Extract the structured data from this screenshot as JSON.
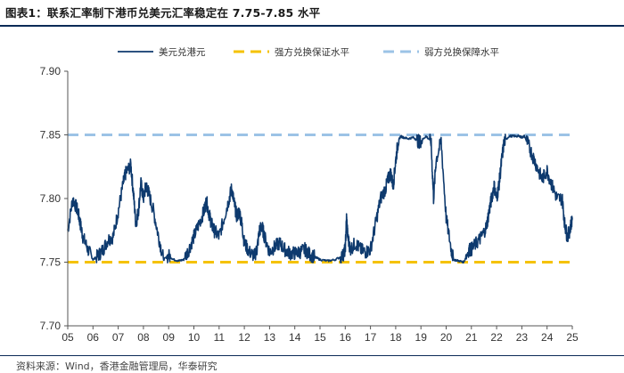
{
  "chart_data": {
    "type": "line",
    "title": "图表1：联系汇率制下港币兑美元汇率稳定在 7.75-7.85 水平",
    "source": "资料来源：Wind，香港金融管理局，华泰研究",
    "xlabel": "",
    "ylabel": "",
    "x_ticks": [
      "05",
      "06",
      "07",
      "08",
      "09",
      "10",
      "11",
      "12",
      "13",
      "14",
      "15",
      "16",
      "17",
      "18",
      "19",
      "20",
      "21",
      "22",
      "23",
      "24",
      "25"
    ],
    "y_ticks": [
      "7.90",
      "7.85",
      "7.80",
      "7.75",
      "7.70"
    ],
    "xlim": [
      2005.0,
      2025.0
    ],
    "ylim": [
      7.7,
      7.9
    ],
    "legend": {
      "placement": "top",
      "entries": [
        "美元兑港元",
        "强方兑换保证水平",
        "弱方兑换保障水平"
      ]
    },
    "colors": {
      "series": "#0e3a6e",
      "strong": "#f5c200",
      "weak": "#9cc3e6"
    },
    "reference_lines": [
      {
        "name": "强方兑换保证水平",
        "y": 7.75,
        "style": "dashed"
      },
      {
        "name": "弱方兑换保障水平",
        "y": 7.85,
        "style": "dashed"
      }
    ],
    "series": [
      {
        "name": "美元兑港元",
        "x": [
          2005.0,
          2005.2,
          2005.4,
          2005.5,
          2005.6,
          2005.8,
          2006.0,
          2006.2,
          2006.4,
          2006.6,
          2006.8,
          2007.0,
          2007.2,
          2007.3,
          2007.5,
          2007.6,
          2007.7,
          2007.8,
          2007.9,
          2008.0,
          2008.1,
          2008.2,
          2008.4,
          2008.6,
          2008.8,
          2009.0,
          2009.2,
          2009.4,
          2009.6,
          2009.8,
          2010.0,
          2010.2,
          2010.4,
          2010.5,
          2010.6,
          2010.7,
          2010.8,
          2011.0,
          2011.2,
          2011.4,
          2011.5,
          2011.6,
          2011.7,
          2011.8,
          2011.9,
          2012.0,
          2012.2,
          2012.4,
          2012.5,
          2012.6,
          2012.7,
          2012.8,
          2013.0,
          2013.2,
          2013.4,
          2013.6,
          2013.8,
          2014.0,
          2014.2,
          2014.4,
          2014.6,
          2014.8,
          2015.0,
          2015.3,
          2015.6,
          2015.9,
          2016.0,
          2016.05,
          2016.1,
          2016.2,
          2016.4,
          2016.6,
          2016.8,
          2017.0,
          2017.2,
          2017.4,
          2017.6,
          2017.7,
          2017.8,
          2017.9,
          2018.0,
          2018.1,
          2018.2,
          2018.3,
          2018.5,
          2018.7,
          2018.9,
          2019.0,
          2019.2,
          2019.4,
          2019.5,
          2019.6,
          2019.8,
          2020.0,
          2020.2,
          2020.3,
          2020.5,
          2020.7,
          2020.9,
          2021.0,
          2021.2,
          2021.4,
          2021.6,
          2021.7,
          2021.8,
          2021.9,
          2022.0,
          2022.1,
          2022.2,
          2022.3,
          2022.5,
          2022.7,
          2022.9,
          2023.0,
          2023.1,
          2023.2,
          2023.4,
          2023.6,
          2023.8,
          2024.0,
          2024.2,
          2024.4,
          2024.6,
          2024.7,
          2024.8,
          2024.9,
          2025.0
        ],
        "values": [
          7.775,
          7.8,
          7.79,
          7.78,
          7.77,
          7.76,
          7.752,
          7.755,
          7.76,
          7.768,
          7.77,
          7.79,
          7.812,
          7.82,
          7.826,
          7.805,
          7.78,
          7.79,
          7.812,
          7.8,
          7.81,
          7.805,
          7.79,
          7.77,
          7.752,
          7.755,
          7.752,
          7.751,
          7.752,
          7.76,
          7.77,
          7.78,
          7.79,
          7.798,
          7.788,
          7.78,
          7.775,
          7.77,
          7.785,
          7.8,
          7.808,
          7.796,
          7.786,
          7.79,
          7.78,
          7.765,
          7.758,
          7.755,
          7.76,
          7.775,
          7.778,
          7.77,
          7.758,
          7.762,
          7.765,
          7.76,
          7.757,
          7.757,
          7.758,
          7.76,
          7.756,
          7.754,
          7.752,
          7.751,
          7.752,
          7.755,
          7.76,
          7.785,
          7.77,
          7.76,
          7.765,
          7.76,
          7.758,
          7.76,
          7.78,
          7.8,
          7.808,
          7.815,
          7.82,
          7.81,
          7.83,
          7.845,
          7.849,
          7.848,
          7.847,
          7.848,
          7.845,
          7.845,
          7.849,
          7.845,
          7.8,
          7.83,
          7.845,
          7.785,
          7.76,
          7.752,
          7.751,
          7.75,
          7.76,
          7.76,
          7.765,
          7.77,
          7.778,
          7.79,
          7.8,
          7.81,
          7.8,
          7.812,
          7.83,
          7.845,
          7.849,
          7.849,
          7.849,
          7.848,
          7.849,
          7.845,
          7.835,
          7.825,
          7.815,
          7.822,
          7.81,
          7.8,
          7.8,
          7.78,
          7.77,
          7.775,
          7.785
        ]
      }
    ]
  }
}
